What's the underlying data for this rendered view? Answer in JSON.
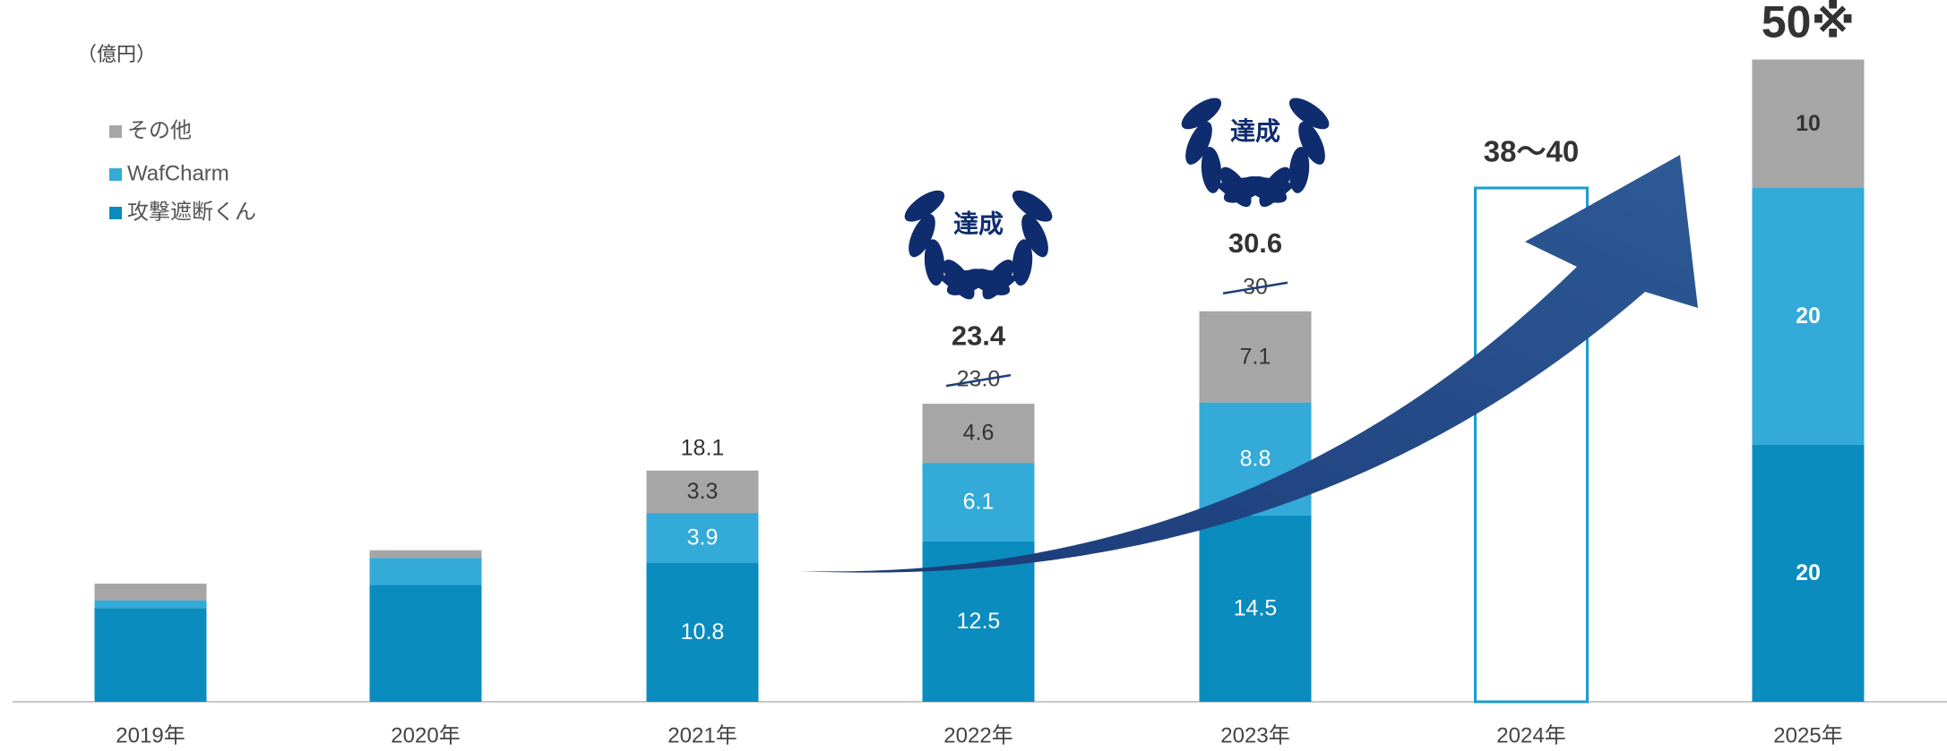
{
  "chart_data": {
    "type": "stacked_bar",
    "unit_label": "（億円）",
    "categories": [
      "2019年",
      "2020年",
      "2021年",
      "2022年",
      "2023年",
      "2024年",
      "2025年"
    ],
    "ylim": [
      0,
      50
    ],
    "series": [
      {
        "name": "攻撃遮断くん",
        "color": "#0a8cbf",
        "values": [
          7.3,
          9.1,
          10.8,
          12.5,
          14.5,
          null,
          20
        ],
        "value_labels": [
          null,
          null,
          "10.8",
          "12.5",
          "14.5",
          null,
          "20"
        ]
      },
      {
        "name": "WafCharm",
        "color": "#33aad8",
        "values": [
          0.6,
          2.1,
          3.9,
          6.1,
          8.8,
          null,
          20
        ],
        "value_labels": [
          null,
          null,
          "3.9",
          "6.1",
          "8.8",
          null,
          "20"
        ]
      },
      {
        "name": "その他",
        "color": "#a6a6a6",
        "values": [
          1.3,
          0.6,
          3.3,
          4.6,
          7.1,
          null,
          10
        ],
        "value_labels": [
          null,
          null,
          "3.3",
          "4.6",
          "7.1",
          null,
          "10"
        ]
      }
    ],
    "totals": [
      null,
      null,
      18.1,
      23.4,
      30.6,
      null,
      50
    ],
    "total_labels": [
      null,
      null,
      "18.1",
      "23.4",
      "30.6",
      null,
      "50※"
    ],
    "previous_targets": [
      null,
      null,
      null,
      23.0,
      30,
      null,
      null
    ],
    "previous_target_labels": [
      null,
      null,
      null,
      "23.0",
      "30",
      null,
      null
    ],
    "badges": [
      null,
      null,
      null,
      "達成",
      "達成",
      null,
      null
    ],
    "targets": [
      {
        "category": "2024年",
        "low": 38,
        "high": 40,
        "label": "38〜40",
        "color": "#1b9dd0"
      }
    ]
  }
}
